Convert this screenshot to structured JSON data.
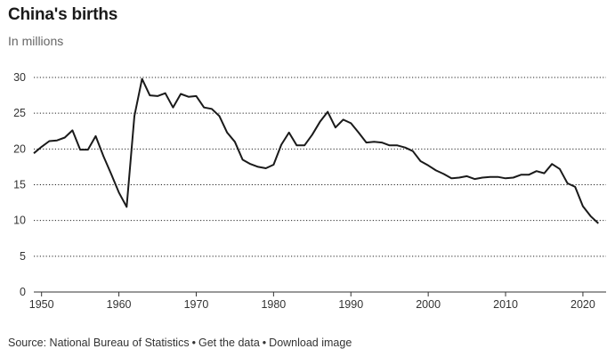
{
  "header": {
    "title": "China's births",
    "subtitle": "In millions"
  },
  "footer": {
    "source": "Source: National Bureau of Statistics",
    "get_data": "Get the data",
    "download": "Download image",
    "separator": "•"
  },
  "colors": {
    "line": "#1a1a1a",
    "grid": "#222222",
    "axis": "#333333"
  },
  "chart_data": {
    "type": "line",
    "title": "China's births",
    "subtitle": "In millions",
    "xlabel": "",
    "ylabel": "",
    "xlim": [
      1949,
      2023
    ],
    "ylim": [
      0,
      30
    ],
    "xticks": [
      1950,
      1960,
      1970,
      1980,
      1990,
      2000,
      2010,
      2020
    ],
    "yticks": [
      0,
      5,
      10,
      15,
      20,
      25,
      30
    ],
    "grid": "horizontal-dotted",
    "legend": "none",
    "series": [
      {
        "x": [
          1949,
          1950,
          1951,
          1952,
          1953,
          1954,
          1955,
          1956,
          1957,
          1958,
          1959,
          1960,
          1961,
          1962,
          1963,
          1964,
          1965,
          1966,
          1967,
          1968,
          1969,
          1970,
          1971,
          1972,
          1973,
          1974,
          1975,
          1976,
          1977,
          1978,
          1979,
          1980,
          1981,
          1982,
          1983,
          1984,
          1985,
          1986,
          1987,
          1988,
          1989,
          1990,
          1991,
          1992,
          1993,
          1994,
          1995,
          1996,
          1997,
          1998,
          1999,
          2000,
          2001,
          2002,
          2003,
          2004,
          2005,
          2006,
          2007,
          2008,
          2009,
          2010,
          2011,
          2012,
          2013,
          2014,
          2015,
          2016,
          2017,
          2018,
          2019,
          2020,
          2021,
          2022
        ],
        "values": [
          19.4,
          20.3,
          21.1,
          21.2,
          21.6,
          22.6,
          19.9,
          19.9,
          21.8,
          19.0,
          16.5,
          13.9,
          11.9,
          24.6,
          29.8,
          27.5,
          27.4,
          27.8,
          25.8,
          27.7,
          27.3,
          27.4,
          25.8,
          25.6,
          24.6,
          22.3,
          21.0,
          18.5,
          17.9,
          17.5,
          17.3,
          17.8,
          20.6,
          22.3,
          20.5,
          20.5,
          22.0,
          23.8,
          25.2,
          23.0,
          24.1,
          23.6,
          22.3,
          20.9,
          21.0,
          20.9,
          20.5,
          20.5,
          20.2,
          19.7,
          18.3,
          17.7,
          17.0,
          16.5,
          15.9,
          16.0,
          16.2,
          15.8,
          16.0,
          16.1,
          16.1,
          15.9,
          16.0,
          16.4,
          16.4,
          16.9,
          16.6,
          17.9,
          17.2,
          15.2,
          14.7,
          12.0,
          10.6,
          9.6
        ]
      }
    ]
  }
}
